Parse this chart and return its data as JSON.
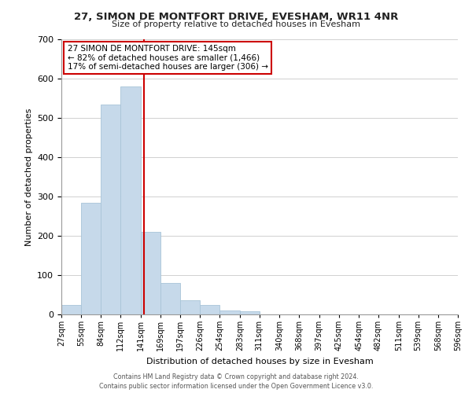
{
  "title": "27, SIMON DE MONTFORT DRIVE, EVESHAM, WR11 4NR",
  "subtitle": "Size of property relative to detached houses in Evesham",
  "xlabel": "Distribution of detached houses by size in Evesham",
  "ylabel": "Number of detached properties",
  "bar_color": "#c6d9ea",
  "bar_edge_color": "#a8c4d8",
  "property_line_x": 145,
  "property_line_color": "#cc0000",
  "annotation_line1": "27 SIMON DE MONTFORT DRIVE: 145sqm",
  "annotation_line2": "← 82% of detached houses are smaller (1,466)",
  "annotation_line3": "17% of semi-detached houses are larger (306) →",
  "annotation_box_color": "#ffffff",
  "annotation_box_edge_color": "#cc0000",
  "bin_edges": [
    27,
    55,
    84,
    112,
    141,
    169,
    197,
    226,
    254,
    283,
    311,
    340,
    368,
    397,
    425,
    454,
    482,
    511,
    539,
    568,
    596
  ],
  "bin_counts": [
    25,
    285,
    535,
    580,
    210,
    80,
    37,
    25,
    10,
    8,
    0,
    0,
    0,
    0,
    0,
    0,
    0,
    0,
    0,
    0
  ],
  "ylim": [
    0,
    700
  ],
  "yticks": [
    0,
    100,
    200,
    300,
    400,
    500,
    600,
    700
  ],
  "tick_labels": [
    "27sqm",
    "55sqm",
    "84sqm",
    "112sqm",
    "141sqm",
    "169sqm",
    "197sqm",
    "226sqm",
    "254sqm",
    "283sqm",
    "311sqm",
    "340sqm",
    "368sqm",
    "397sqm",
    "425sqm",
    "454sqm",
    "482sqm",
    "511sqm",
    "539sqm",
    "568sqm",
    "596sqm"
  ],
  "footer_line1": "Contains HM Land Registry data © Crown copyright and database right 2024.",
  "footer_line2": "Contains public sector information licensed under the Open Government Licence v3.0.",
  "background_color": "#ffffff",
  "grid_color": "#d0d0d0"
}
